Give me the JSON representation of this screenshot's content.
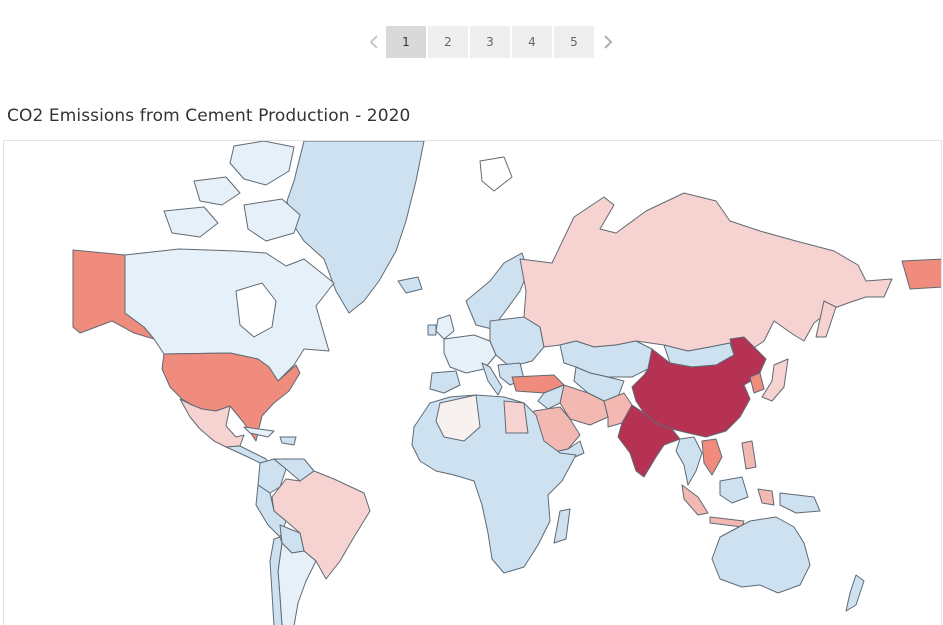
{
  "pager": {
    "pages": [
      "1",
      "2",
      "3",
      "4",
      "5"
    ],
    "active_page": "1",
    "prev_icon": "chevron-left-icon",
    "next_icon": "chevron-right-icon"
  },
  "title": "CO2 Emissions from Cement Production - 2020",
  "legend_colors": {
    "very_low": "#cde1f0",
    "low": "#e6f0f8",
    "neutral": "#f7f1f0",
    "mid_low": "#f6d2d0",
    "mid": "#f4b8b2",
    "high": "#ef8c7e",
    "very_high": "#b53253"
  }
}
